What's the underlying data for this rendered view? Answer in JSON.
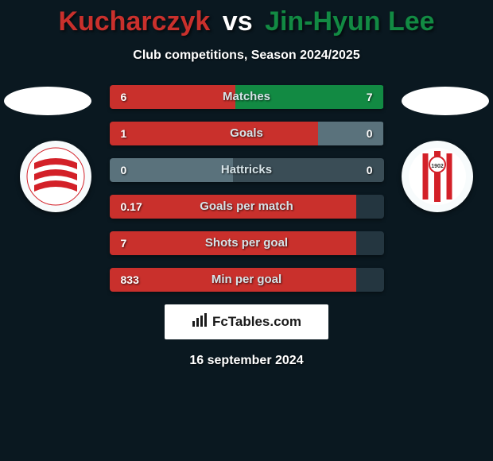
{
  "title": {
    "player1": "Kucharczyk",
    "vs": "vs",
    "player2": "Jin-Hyun Lee",
    "player1_color": "#c9302c",
    "player2_color": "#128a43"
  },
  "subtitle": "Club competitions, Season 2024/2025",
  "flags": {
    "left_color": "#ffffff",
    "right_color": "#ffffff"
  },
  "club_logos": {
    "left": {
      "stripe_color": "#d32028",
      "bg": "#ffffff"
    },
    "right": {
      "stripe_color": "#d32028",
      "bg": "#ffffff"
    }
  },
  "bar_colors": {
    "left": "#c9302c",
    "right": "#128a43",
    "neutral": "#5a727c",
    "track_dark": "#243640",
    "track_mid": "#3a4d56"
  },
  "stats": [
    {
      "label": "Matches",
      "left_val": "6",
      "right_val": "7",
      "left_pct": 46,
      "right_pct": 54,
      "left_fill": "left",
      "right_fill": "right"
    },
    {
      "label": "Goals",
      "left_val": "1",
      "right_val": "0",
      "left_pct": 76,
      "right_pct": 24,
      "left_fill": "left",
      "right_fill": "neutral"
    },
    {
      "label": "Hattricks",
      "left_val": "0",
      "right_val": "0",
      "left_pct": 45,
      "right_pct": 55,
      "left_fill": "neutral",
      "right_fill": "track_mid"
    },
    {
      "label": "Goals per match",
      "left_val": "0.17",
      "right_val": "",
      "left_pct": 90,
      "right_pct": 10,
      "left_fill": "left",
      "right_fill": "track_dark"
    },
    {
      "label": "Shots per goal",
      "left_val": "7",
      "right_val": "",
      "left_pct": 90,
      "right_pct": 10,
      "left_fill": "left",
      "right_fill": "track_dark"
    },
    {
      "label": "Min per goal",
      "left_val": "833",
      "right_val": "",
      "left_pct": 90,
      "right_pct": 10,
      "left_fill": "left",
      "right_fill": "track_dark"
    }
  ],
  "brand": "FcTables.com",
  "date": "16 september 2024"
}
